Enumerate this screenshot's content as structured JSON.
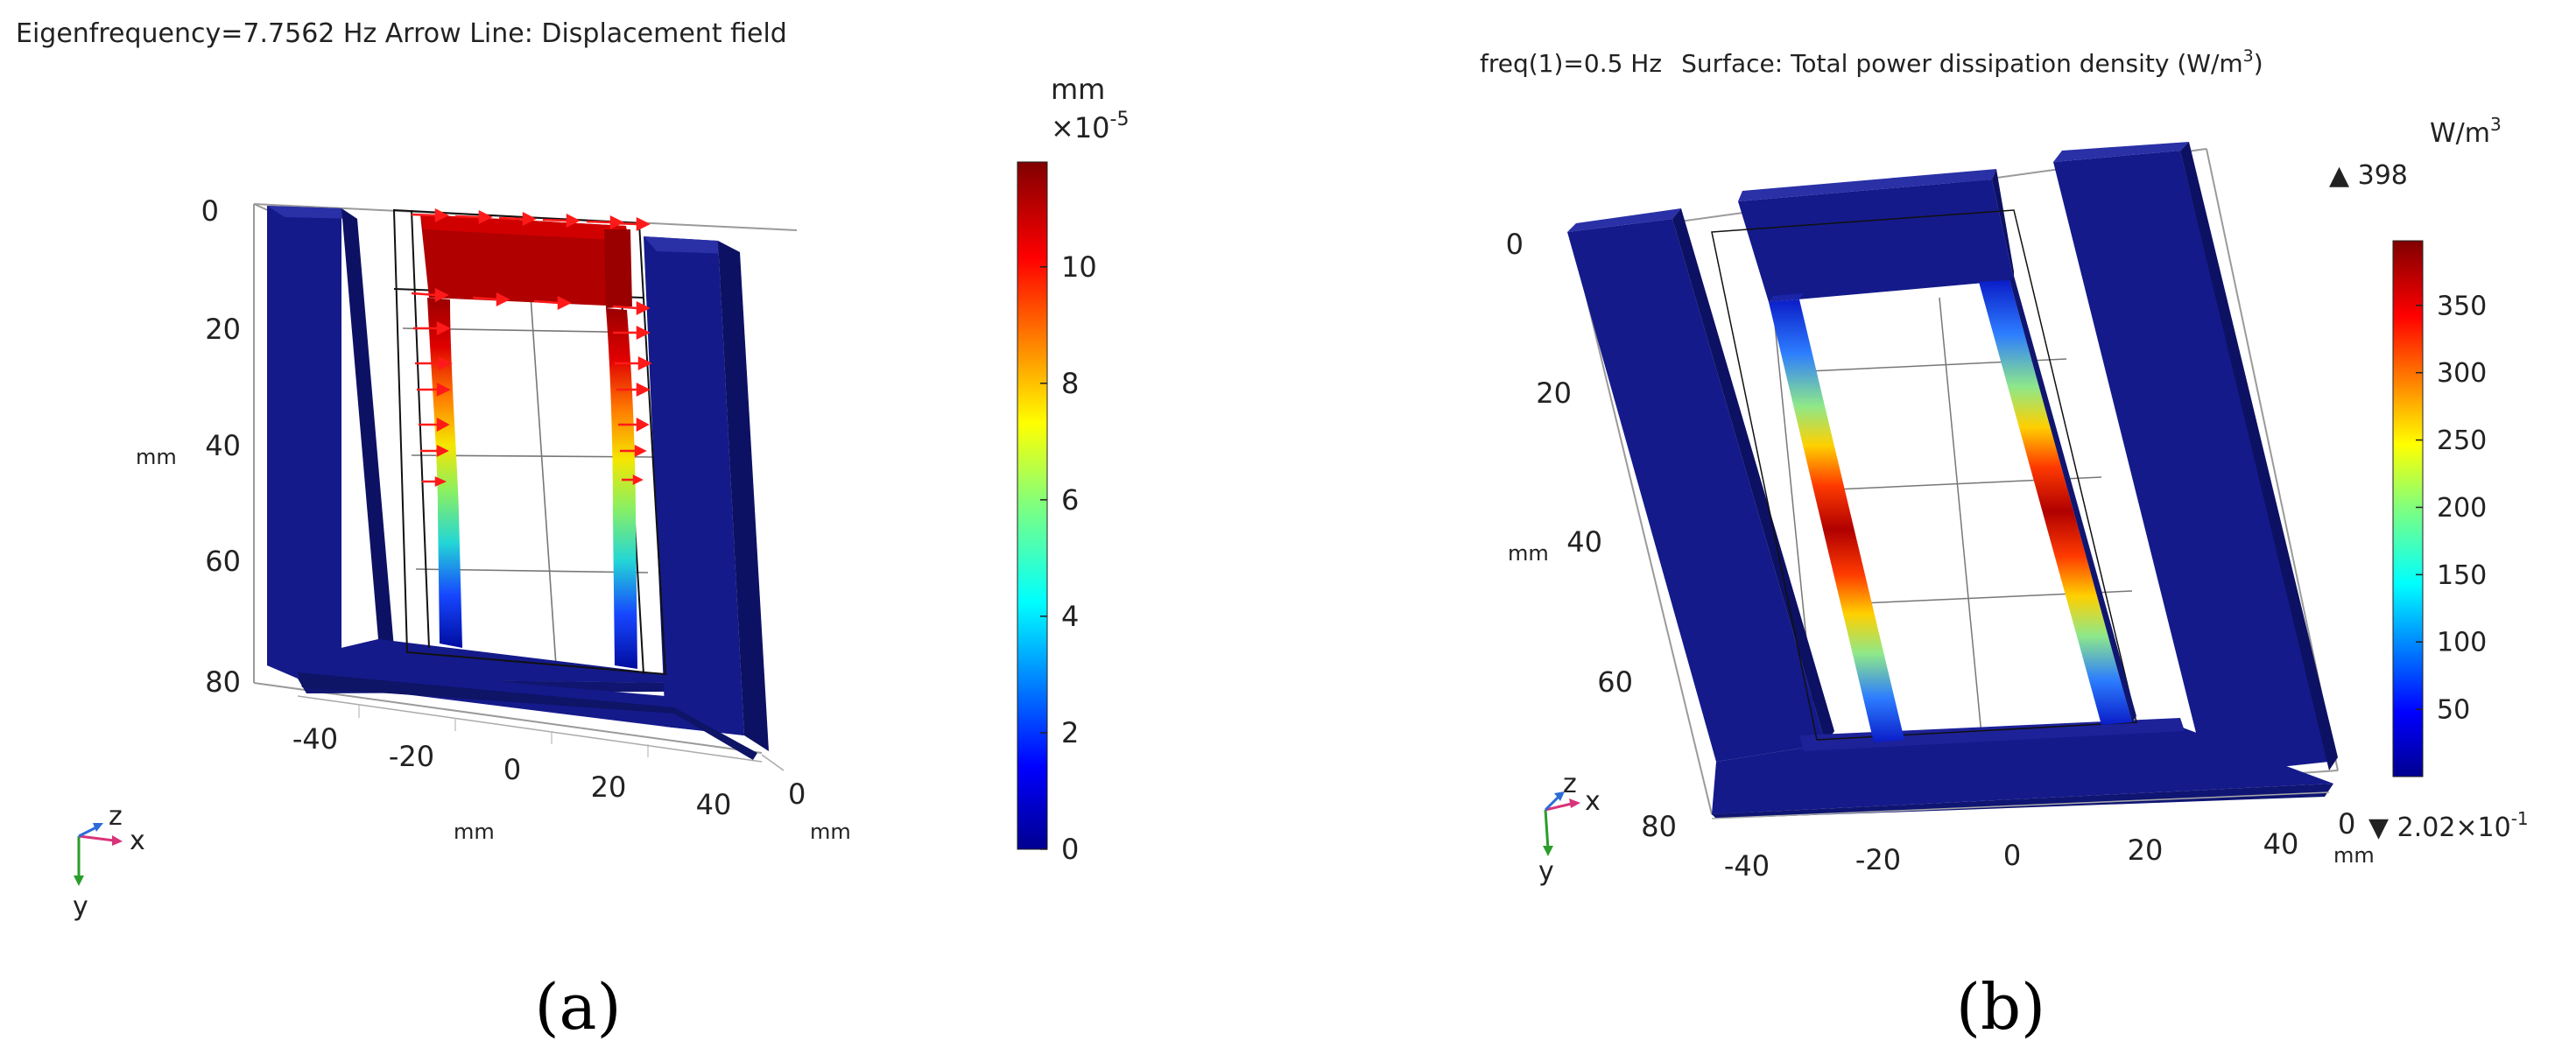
{
  "panel_a": {
    "title": "Eigenfrequency=7.7562 Hz   Arrow Line: Displacement field",
    "colorbar": {
      "unit": "mm",
      "exponent_label": "×10",
      "exponent": "-5",
      "ticks": [
        "0",
        "2",
        "4",
        "6",
        "8",
        "10"
      ],
      "range": [
        0,
        11.8
      ]
    },
    "axis_y": {
      "ticks": [
        "0",
        "20",
        "40",
        "60",
        "80"
      ],
      "label": "mm"
    },
    "axis_x": {
      "ticks": [
        "-40",
        "-20",
        "0",
        "20",
        "40"
      ],
      "label": "mm"
    },
    "axis_z": {
      "ticks": [
        "0"
      ],
      "label": "mm"
    },
    "triad": {
      "x": "x",
      "y": "y",
      "z": "z"
    },
    "caption": "(a)"
  },
  "panel_b": {
    "title_prefix": "freq(1)=0.5 Hz",
    "title_main": "Surface: Total power dissipation density (W/m",
    "title_sup": "3",
    "title_suffix": ")",
    "colorbar": {
      "unit": "W/m",
      "unit_sup": "3",
      "max_label": "▲ 398",
      "min_label": "▼ 2.02×10",
      "min_exp": "-1",
      "ticks": [
        "50",
        "100",
        "150",
        "200",
        "250",
        "300",
        "350"
      ],
      "range": [
        0,
        398
      ]
    },
    "axis_y": {
      "ticks": [
        "0",
        "20",
        "40",
        "60",
        "80"
      ],
      "label": "mm"
    },
    "axis_x": {
      "ticks": [
        "-40",
        "-20",
        "0",
        "20",
        "40"
      ],
      "label": "mm"
    },
    "axis_z": {
      "ticks": [
        "0"
      ],
      "label": "mm"
    },
    "triad": {
      "x": "x",
      "y": "y",
      "z": "z"
    },
    "caption": "(b)"
  },
  "colors": {
    "frame_blue": "#141a8a",
    "frame_dark": "#0d1163",
    "frame_side": "#1d2298",
    "arrow_red": "#ff1a1a"
  }
}
